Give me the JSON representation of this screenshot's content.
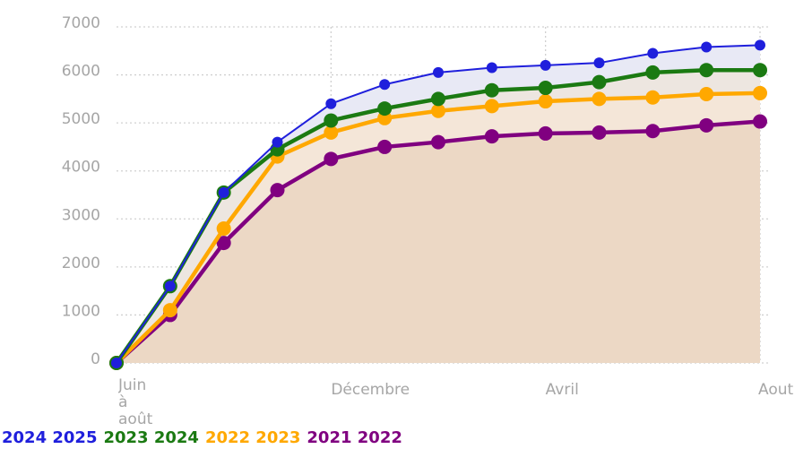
{
  "chart_data": {
    "type": "line",
    "categories": [
      "Juin à août",
      null,
      null,
      null,
      "Décembre",
      null,
      null,
      null,
      "Avril",
      null,
      null,
      null,
      "Aout"
    ],
    "ylim": [
      0,
      7000
    ],
    "yticks": [
      0,
      1000,
      2000,
      3000,
      4000,
      5000,
      6000,
      7000
    ],
    "grid": true,
    "series": [
      {
        "name": "2024 2025",
        "color": "#1f1fdc",
        "fill": "#e8e9f5",
        "values": [
          0,
          1600,
          3550,
          4600,
          5400,
          5800,
          6050,
          6150,
          6200,
          6250,
          6450,
          6580,
          6620
        ]
      },
      {
        "name": "2023 2024",
        "color": "#1b7a12",
        "fill": "#ede6e0",
        "values": [
          0,
          1600,
          3550,
          4450,
          5050,
          5300,
          5500,
          5680,
          5730,
          5850,
          6050,
          6100,
          6100
        ]
      },
      {
        "name": "2022 2023",
        "color": "#ffa800",
        "fill": "#f4e6d8",
        "values": [
          0,
          1100,
          2800,
          4300,
          4800,
          5100,
          5250,
          5350,
          5450,
          5500,
          5530,
          5600,
          5620
        ]
      },
      {
        "name": "2021 2022",
        "color": "#800080",
        "fill": "#ecd8c5",
        "values": [
          0,
          1000,
          2500,
          3600,
          4250,
          4500,
          4600,
          4720,
          4780,
          4800,
          4830,
          4950,
          5030
        ]
      }
    ]
  }
}
